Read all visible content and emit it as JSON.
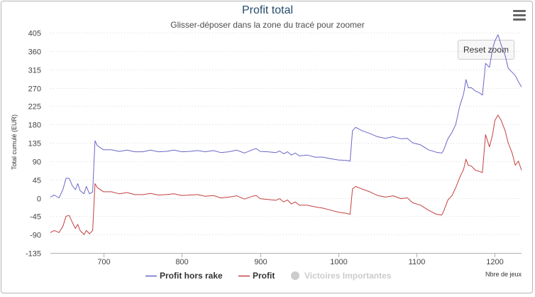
{
  "chart_data": {
    "type": "line",
    "title": "Profit total",
    "subtitle": "Glisser-déposer dans la zone du tracé pour zoomer",
    "xlabel": "Nbre de jeux",
    "ylabel": "Total cumulé (EUR)",
    "xlim": [
      632,
      1234
    ],
    "ylim": [
      -135,
      405
    ],
    "xticks": [
      700,
      800,
      900,
      1000,
      1100,
      1200
    ],
    "yticks": [
      405,
      360,
      315,
      270,
      225,
      180,
      135,
      90,
      45,
      0,
      -45,
      -90,
      -135
    ],
    "grid": true,
    "legend_position": "bottom",
    "series": [
      {
        "name": "Profit hors rake",
        "color": "#6b66c8",
        "points": [
          [
            632,
            2
          ],
          [
            637,
            7
          ],
          [
            643,
            0
          ],
          [
            648,
            20
          ],
          [
            652,
            48
          ],
          [
            656,
            48
          ],
          [
            660,
            30
          ],
          [
            664,
            20
          ],
          [
            667,
            35
          ],
          [
            670,
            18
          ],
          [
            675,
            10
          ],
          [
            678,
            28
          ],
          [
            682,
            10
          ],
          [
            686,
            15
          ],
          [
            689,
            140
          ],
          [
            692,
            128
          ],
          [
            700,
            118
          ],
          [
            710,
            118
          ],
          [
            720,
            114
          ],
          [
            730,
            117
          ],
          [
            740,
            113
          ],
          [
            750,
            113
          ],
          [
            760,
            117
          ],
          [
            770,
            113
          ],
          [
            780,
            114
          ],
          [
            790,
            117
          ],
          [
            800,
            113
          ],
          [
            810,
            114
          ],
          [
            820,
            116
          ],
          [
            830,
            113
          ],
          [
            840,
            116
          ],
          [
            850,
            111
          ],
          [
            860,
            113
          ],
          [
            870,
            117
          ],
          [
            880,
            110
          ],
          [
            890,
            118
          ],
          [
            895,
            121
          ],
          [
            900,
            114
          ],
          [
            910,
            113
          ],
          [
            920,
            111
          ],
          [
            925,
            115
          ],
          [
            930,
            108
          ],
          [
            935,
            113
          ],
          [
            940,
            105
          ],
          [
            945,
            110
          ],
          [
            950,
            103
          ],
          [
            960,
            105
          ],
          [
            970,
            100
          ],
          [
            980,
            100
          ],
          [
            990,
            96
          ],
          [
            1000,
            93
          ],
          [
            1010,
            92
          ],
          [
            1015,
            90
          ],
          [
            1018,
            165
          ],
          [
            1022,
            173
          ],
          [
            1030,
            165
          ],
          [
            1040,
            158
          ],
          [
            1050,
            150
          ],
          [
            1060,
            146
          ],
          [
            1070,
            150
          ],
          [
            1080,
            145
          ],
          [
            1088,
            146
          ],
          [
            1095,
            135
          ],
          [
            1105,
            130
          ],
          [
            1115,
            118
          ],
          [
            1125,
            112
          ],
          [
            1132,
            110
          ],
          [
            1134,
            115
          ],
          [
            1140,
            145
          ],
          [
            1145,
            160
          ],
          [
            1150,
            180
          ],
          [
            1155,
            225
          ],
          [
            1160,
            255
          ],
          [
            1163,
            290
          ],
          [
            1166,
            270
          ],
          [
            1170,
            270
          ],
          [
            1175,
            262
          ],
          [
            1180,
            258
          ],
          [
            1184,
            252
          ],
          [
            1188,
            330
          ],
          [
            1193,
            320
          ],
          [
            1197,
            365
          ],
          [
            1200,
            385
          ],
          [
            1204,
            400
          ],
          [
            1208,
            375
          ],
          [
            1213,
            350
          ],
          [
            1217,
            318
          ],
          [
            1222,
            308
          ],
          [
            1226,
            300
          ],
          [
            1230,
            285
          ],
          [
            1234,
            272
          ]
        ]
      },
      {
        "name": "Profit",
        "color": "#c44040",
        "points": [
          [
            632,
            -85
          ],
          [
            637,
            -80
          ],
          [
            643,
            -85
          ],
          [
            648,
            -70
          ],
          [
            652,
            -45
          ],
          [
            656,
            -43
          ],
          [
            660,
            -60
          ],
          [
            664,
            -75
          ],
          [
            667,
            -65
          ],
          [
            670,
            -80
          ],
          [
            675,
            -90
          ],
          [
            678,
            -80
          ],
          [
            682,
            -88
          ],
          [
            686,
            -80
          ],
          [
            689,
            35
          ],
          [
            692,
            25
          ],
          [
            700,
            15
          ],
          [
            710,
            15
          ],
          [
            720,
            10
          ],
          [
            730,
            13
          ],
          [
            740,
            8
          ],
          [
            750,
            8
          ],
          [
            760,
            11
          ],
          [
            770,
            7
          ],
          [
            780,
            8
          ],
          [
            790,
            10
          ],
          [
            800,
            6
          ],
          [
            810,
            7
          ],
          [
            820,
            8
          ],
          [
            830,
            4
          ],
          [
            840,
            6
          ],
          [
            850,
            0
          ],
          [
            860,
            2
          ],
          [
            870,
            5
          ],
          [
            880,
            -3
          ],
          [
            890,
            4
          ],
          [
            895,
            6
          ],
          [
            900,
            -2
          ],
          [
            910,
            -4
          ],
          [
            920,
            -6
          ],
          [
            925,
            -2
          ],
          [
            930,
            -10
          ],
          [
            935,
            -5
          ],
          [
            940,
            -15
          ],
          [
            945,
            -10
          ],
          [
            950,
            -18
          ],
          [
            960,
            -18
          ],
          [
            970,
            -22
          ],
          [
            980,
            -25
          ],
          [
            990,
            -30
          ],
          [
            1000,
            -35
          ],
          [
            1010,
            -38
          ],
          [
            1015,
            -40
          ],
          [
            1018,
            22
          ],
          [
            1022,
            28
          ],
          [
            1030,
            22
          ],
          [
            1040,
            15
          ],
          [
            1050,
            6
          ],
          [
            1060,
            2
          ],
          [
            1070,
            5
          ],
          [
            1080,
            -2
          ],
          [
            1088,
            0
          ],
          [
            1095,
            -12
          ],
          [
            1105,
            -18
          ],
          [
            1115,
            -30
          ],
          [
            1125,
            -40
          ],
          [
            1132,
            -42
          ],
          [
            1134,
            -35
          ],
          [
            1140,
            -5
          ],
          [
            1145,
            5
          ],
          [
            1150,
            25
          ],
          [
            1155,
            50
          ],
          [
            1160,
            70
          ],
          [
            1163,
            95
          ],
          [
            1166,
            80
          ],
          [
            1170,
            78
          ],
          [
            1175,
            68
          ],
          [
            1180,
            65
          ],
          [
            1184,
            62
          ],
          [
            1188,
            155
          ],
          [
            1193,
            125
          ],
          [
            1197,
            155
          ],
          [
            1200,
            190
          ],
          [
            1204,
            203
          ],
          [
            1208,
            190
          ],
          [
            1213,
            165
          ],
          [
            1217,
            135
          ],
          [
            1222,
            110
          ],
          [
            1226,
            80
          ],
          [
            1230,
            90
          ],
          [
            1234,
            68
          ]
        ]
      },
      {
        "name": "Victoires Importantes",
        "color": "#cccccc",
        "hidden": true,
        "points": []
      }
    ]
  },
  "ui": {
    "reset_zoom_label": "Reset zoom",
    "menu_icon": "hamburger-menu-icon"
  }
}
